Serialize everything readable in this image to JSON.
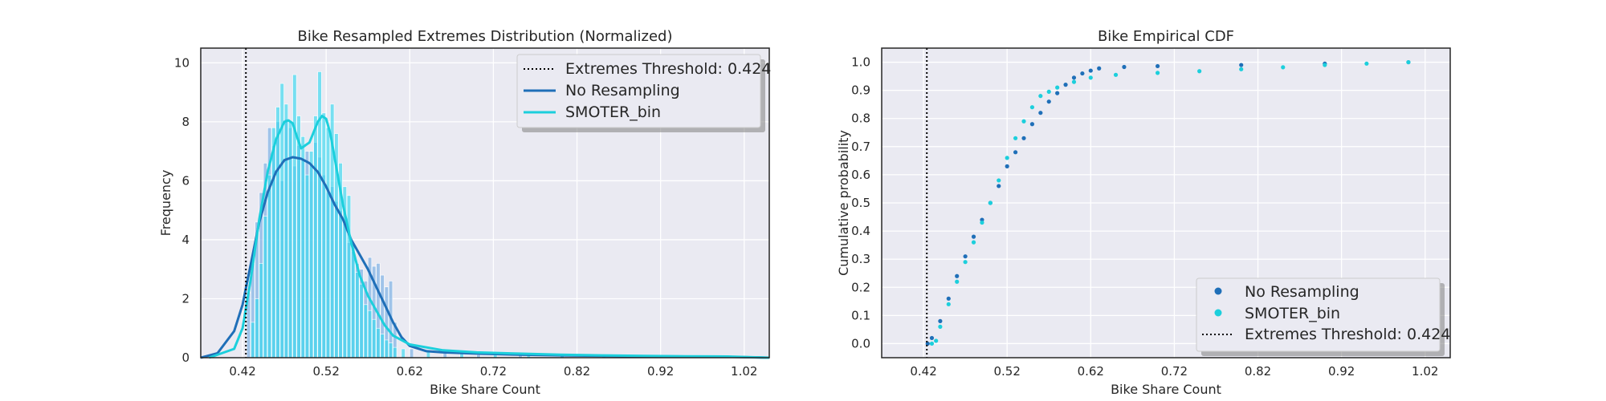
{
  "colors": {
    "no_resampling": "#1f6fb8",
    "smoter_bin": "#1ccfdc",
    "hist_no_resampling": "#85b6e6",
    "hist_smoter_bin": "#37d9f0",
    "panel_bg": "#eaeaf2",
    "grid": "#ffffff",
    "threshold": "#000000"
  },
  "chart_data": [
    {
      "type": "histogram+kde",
      "title": "Bike Resampled Extremes Distribution (Normalized)",
      "xlabel": "Bike Share Count",
      "ylabel": "Frequency",
      "xlim": [
        0.37,
        1.05
      ],
      "ylim": [
        0,
        10.5
      ],
      "xticks": [
        "0.42",
        "0.52",
        "0.62",
        "0.72",
        "0.82",
        "0.92",
        "1.02"
      ],
      "yticks": [
        "0",
        "2",
        "4",
        "6",
        "8",
        "10"
      ],
      "grid": true,
      "legend_position": "top-right",
      "threshold": {
        "label": "Extremes Threshold: 0.424",
        "x": 0.424
      },
      "series": [
        {
          "name": "No Resampling",
          "bin_width": 0.005,
          "hist_x": [
            0.425,
            0.43,
            0.435,
            0.44,
            0.445,
            0.45,
            0.455,
            0.46,
            0.465,
            0.47,
            0.475,
            0.48,
            0.485,
            0.49,
            0.495,
            0.5,
            0.505,
            0.51,
            0.515,
            0.52,
            0.525,
            0.53,
            0.535,
            0.54,
            0.545,
            0.55,
            0.555,
            0.56,
            0.565,
            0.57,
            0.575,
            0.58,
            0.585,
            0.59,
            0.595,
            0.6,
            0.62,
            0.66,
            0.7,
            0.75,
            0.8,
            0.85,
            0.9,
            0.95,
            1.0
          ],
          "hist_y": [
            2.2,
            3.2,
            4.6,
            5.6,
            6.6,
            7.8,
            7.2,
            8.0,
            6.0,
            8.1,
            7.8,
            6.5,
            7.2,
            6.7,
            7.0,
            6.6,
            7.3,
            6.8,
            6.2,
            5.6,
            5.8,
            5.3,
            5.0,
            4.7,
            3.9,
            3.6,
            3.2,
            3.0,
            2.6,
            3.4,
            3.1,
            3.2,
            2.8,
            2.4,
            2.6,
            1.2,
            0.3,
            0.15,
            0.1,
            0.08,
            0.07,
            0.06,
            0.05,
            0.05,
            0.04
          ],
          "kde_x": [
            0.37,
            0.39,
            0.41,
            0.42,
            0.43,
            0.44,
            0.45,
            0.46,
            0.47,
            0.48,
            0.49,
            0.5,
            0.51,
            0.52,
            0.53,
            0.54,
            0.55,
            0.56,
            0.57,
            0.58,
            0.59,
            0.6,
            0.61,
            0.62,
            0.64,
            0.66,
            0.7,
            0.75,
            0.8,
            0.85,
            0.9,
            0.95,
            1.0,
            1.05
          ],
          "kde_y": [
            0.0,
            0.15,
            0.9,
            1.8,
            3.2,
            4.6,
            5.6,
            6.3,
            6.7,
            6.8,
            6.75,
            6.6,
            6.3,
            5.8,
            5.2,
            4.7,
            4.0,
            3.5,
            3.0,
            2.4,
            1.8,
            1.2,
            0.7,
            0.4,
            0.22,
            0.18,
            0.14,
            0.1,
            0.08,
            0.06,
            0.05,
            0.04,
            0.03,
            0.0
          ]
        },
        {
          "name": "SMOTER_bin",
          "bin_width": 0.005,
          "hist_x": [
            0.43,
            0.435,
            0.44,
            0.445,
            0.45,
            0.455,
            0.46,
            0.465,
            0.47,
            0.475,
            0.48,
            0.485,
            0.49,
            0.495,
            0.5,
            0.505,
            0.51,
            0.515,
            0.52,
            0.525,
            0.53,
            0.535,
            0.54,
            0.545,
            0.55,
            0.555,
            0.56,
            0.565,
            0.57,
            0.575,
            0.58,
            0.585,
            0.59,
            0.595,
            0.6,
            0.61,
            0.64,
            0.68,
            0.72,
            0.76,
            0.8,
            0.85,
            0.9,
            0.95,
            1.0
          ],
          "hist_y": [
            1.2,
            2.0,
            3.2,
            4.8,
            6.2,
            7.8,
            8.5,
            9.3,
            8.6,
            8.0,
            9.6,
            8.2,
            7.5,
            6.2,
            7.0,
            8.2,
            9.7,
            8.3,
            7.8,
            8.6,
            7.6,
            6.6,
            5.8,
            5.5,
            3.8,
            2.9,
            2.5,
            1.8,
            1.6,
            1.3,
            1.0,
            0.8,
            0.6,
            0.5,
            0.35,
            0.3,
            0.2,
            0.15,
            0.12,
            0.1,
            0.08,
            0.08,
            0.06,
            0.06,
            0.05
          ],
          "kde_x": [
            0.38,
            0.41,
            0.42,
            0.43,
            0.44,
            0.45,
            0.46,
            0.47,
            0.475,
            0.48,
            0.485,
            0.49,
            0.5,
            0.51,
            0.515,
            0.52,
            0.525,
            0.53,
            0.54,
            0.55,
            0.56,
            0.57,
            0.58,
            0.59,
            0.6,
            0.62,
            0.66,
            0.7,
            0.75,
            0.8,
            0.85,
            0.9,
            0.95,
            1.0,
            1.05
          ],
          "kde_y": [
            0.0,
            0.3,
            1.0,
            2.7,
            4.7,
            6.3,
            7.4,
            8.0,
            8.05,
            7.95,
            7.5,
            7.1,
            7.3,
            8.0,
            8.2,
            8.1,
            7.6,
            6.8,
            5.2,
            3.9,
            2.8,
            2.1,
            1.6,
            1.1,
            0.75,
            0.45,
            0.25,
            0.18,
            0.14,
            0.1,
            0.08,
            0.06,
            0.05,
            0.04,
            0.0
          ]
        }
      ],
      "legend": [
        "Extremes Threshold: 0.424",
        "No Resampling",
        "SMOTER_bin"
      ]
    },
    {
      "type": "scatter",
      "title": "Bike Empirical CDF",
      "xlabel": "Bike Share Count",
      "ylabel": "Cumulative probability",
      "xlim": [
        0.37,
        1.05
      ],
      "ylim": [
        -0.05,
        1.05
      ],
      "xticks": [
        "0.42",
        "0.52",
        "0.62",
        "0.72",
        "0.82",
        "0.92",
        "1.02"
      ],
      "yticks": [
        "0.0",
        "0.1",
        "0.2",
        "0.3",
        "0.4",
        "0.5",
        "0.6",
        "0.7",
        "0.8",
        "0.9",
        "1.0"
      ],
      "grid": true,
      "legend_position": "bottom-right",
      "threshold": {
        "label": "Extremes Threshold: 0.424",
        "x": 0.424
      },
      "series": [
        {
          "name": "No Resampling",
          "x": [
            0.425,
            0.43,
            0.44,
            0.45,
            0.46,
            0.47,
            0.48,
            0.49,
            0.5,
            0.51,
            0.52,
            0.53,
            0.54,
            0.55,
            0.56,
            0.57,
            0.58,
            0.59,
            0.6,
            0.61,
            0.62,
            0.63,
            0.66,
            0.7,
            0.8,
            0.9,
            1.0
          ],
          "y": [
            0.0,
            0.02,
            0.08,
            0.16,
            0.24,
            0.31,
            0.38,
            0.44,
            0.5,
            0.56,
            0.63,
            0.68,
            0.73,
            0.78,
            0.82,
            0.86,
            0.89,
            0.92,
            0.945,
            0.96,
            0.97,
            0.978,
            0.983,
            0.986,
            0.99,
            0.995,
            1.0
          ]
        },
        {
          "name": "SMOTER_bin",
          "x": [
            0.43,
            0.435,
            0.44,
            0.45,
            0.46,
            0.47,
            0.48,
            0.49,
            0.5,
            0.51,
            0.52,
            0.53,
            0.54,
            0.55,
            0.56,
            0.57,
            0.58,
            0.6,
            0.62,
            0.65,
            0.7,
            0.75,
            0.8,
            0.85,
            0.9,
            0.95,
            1.0
          ],
          "y": [
            0.0,
            0.01,
            0.06,
            0.14,
            0.22,
            0.29,
            0.36,
            0.43,
            0.5,
            0.58,
            0.66,
            0.73,
            0.79,
            0.84,
            0.88,
            0.895,
            0.91,
            0.93,
            0.945,
            0.955,
            0.962,
            0.968,
            0.975,
            0.982,
            0.99,
            0.995,
            1.0
          ]
        }
      ],
      "legend": [
        "No Resampling",
        "SMOTER_bin",
        "Extremes Threshold: 0.424"
      ]
    }
  ]
}
